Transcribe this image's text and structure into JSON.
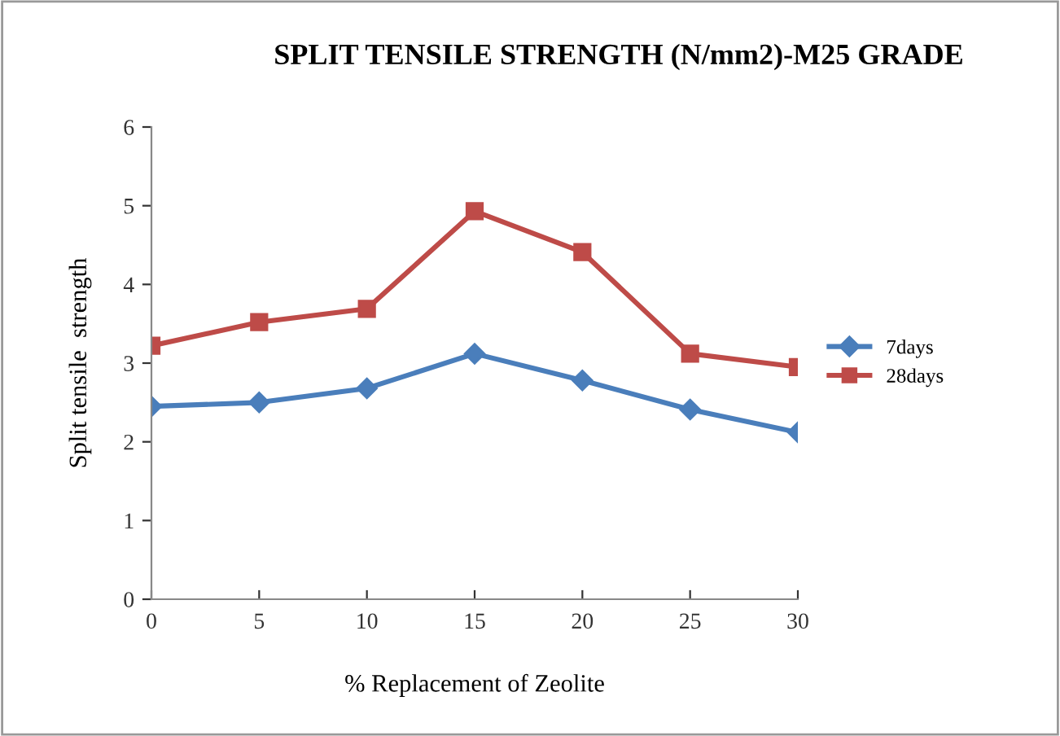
{
  "chart_data": {
    "type": "line",
    "title": "SPLIT TENSILE STRENGTH (N/mm2)-M25 GRADE",
    "xlabel": "% Replacement of Zeolite",
    "ylabel": "Split tensile  strength",
    "x": [
      0,
      5,
      10,
      15,
      20,
      25,
      30
    ],
    "series": [
      {
        "name": "7days",
        "color": "#4a7ebb",
        "values": [
          2.45,
          2.5,
          2.68,
          3.12,
          2.78,
          2.41,
          2.12
        ],
        "marker": "diamond"
      },
      {
        "name": "28days",
        "color": "#be4b48",
        "values": [
          3.22,
          3.52,
          3.69,
          4.93,
          4.41,
          3.12,
          2.95
        ],
        "marker": "square"
      }
    ],
    "xlim": [
      0,
      30
    ],
    "xticks": [
      0,
      5,
      10,
      15,
      20,
      25,
      30
    ],
    "ylim": [
      0,
      6
    ],
    "yticks": [
      0,
      1,
      2,
      3,
      4,
      5,
      6
    ],
    "grid": false,
    "legend": "right"
  }
}
